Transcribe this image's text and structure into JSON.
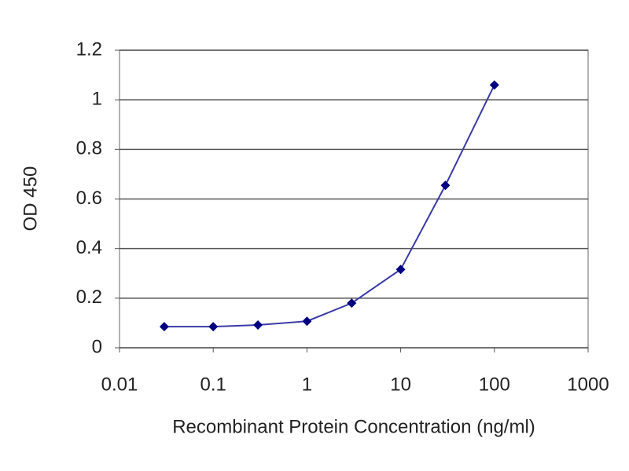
{
  "chart_data": {
    "type": "line",
    "x_label": "Recombinant Protein Concentration (ng/ml)",
    "y_label": "OD 450",
    "x": [
      0.03,
      0.1,
      0.3,
      1,
      3,
      10,
      30,
      100
    ],
    "series": [
      {
        "color": "#000080",
        "line_color": "#3a3aa8",
        "values": [
          0.085,
          0.085,
          0.092,
          0.107,
          0.18,
          0.316,
          0.655,
          1.06
        ]
      }
    ],
    "xscale": "log",
    "xlim": [
      0.01,
      1000
    ],
    "xticks": [
      0.01,
      0.1,
      1,
      10,
      100,
      1000
    ],
    "ylim": [
      0,
      1.2
    ],
    "yticks": [
      0,
      0.2,
      0.4,
      0.6,
      0.8,
      1,
      1.2
    ],
    "grid": true
  }
}
